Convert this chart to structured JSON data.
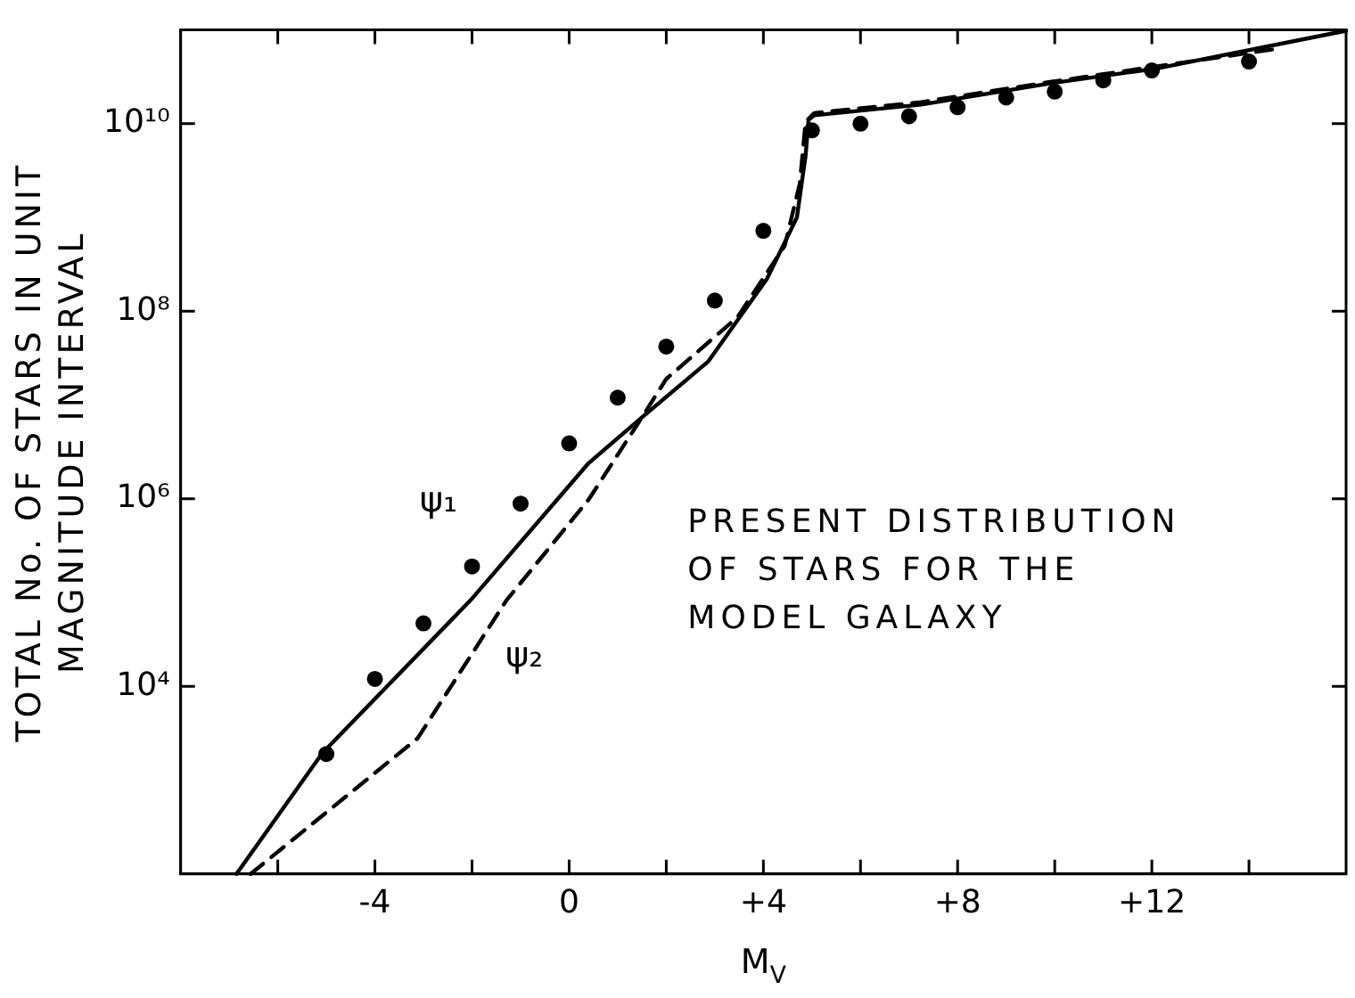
{
  "chart_data": {
    "type": "line",
    "xlabel": "M$_{V}$",
    "ylabel": "TOTAL No. OF STARS IN UNIT\nMAGNITUDE INTERVAL",
    "annotations": [
      "PRESENT DISTRIBUTION\nOF STARS FOR THE\nMODEL GALAXY"
    ],
    "log": "y",
    "grid": false,
    "legend": false,
    "xlim": [
      -8,
      16
    ],
    "xticks": [
      {
        "value": -6,
        "label": null
      },
      -4,
      {
        "value": -2,
        "label": null
      },
      0,
      {
        "value": 2,
        "label": null
      },
      {
        "value": 4,
        "label": "+4"
      },
      {
        "value": 6,
        "label": null
      },
      {
        "value": 8,
        "label": "+8"
      },
      {
        "value": 10,
        "label": null
      },
      {
        "value": 12,
        "label": "+12"
      },
      {
        "value": 14,
        "label": null
      }
    ],
    "ylim": [
      100,
      100000000000
    ],
    "yticks": [
      {
        "value": 10000,
        "label": "10⁴"
      },
      {
        "value": 1000000,
        "label": "10⁶"
      },
      {
        "value": 100000000,
        "label": "10⁸"
      },
      {
        "value": 10000000000,
        "label": "10¹⁰"
      }
    ],
    "series": [
      {
        "name": "ψ₁",
        "color": "#000000",
        "marker": "none",
        "line_style": "solid",
        "x": [
          -6.85,
          -5.08,
          -2.03,
          0.4,
          1.5,
          2.86,
          4.07,
          4.69,
          4.87,
          4.93,
          5.05,
          7.25,
          9.93,
          12.12,
          16
        ],
        "values": [
          100,
          1950,
          83000,
          2400000,
          7400000,
          29000000,
          220000000,
          1000000000,
          4600000000,
          11000000000,
          12300000000,
          16000000000,
          27000000000,
          39000000000,
          98000000000
        ]
      },
      {
        "name": "ψ₂",
        "color": "#000000",
        "marker": "none",
        "line_style": "dashed",
        "x": [
          -6.56,
          -3.12,
          -1.29,
          0.4,
          1.5,
          2.0,
          3.47,
          4.44,
          4.75,
          4.87,
          5.05,
          7.25,
          9.93,
          12.12,
          14.58
        ],
        "values": [
          100,
          2800,
          83000,
          980000,
          7400000,
          19000000,
          87000000,
          500000000,
          2300000000,
          10500000000,
          13000000000,
          17000000000,
          28000000000,
          41000000000,
          63000000000
        ]
      },
      {
        "type": "scatter",
        "color": "#000000",
        "marker": "circle",
        "x": [
          -5,
          -4,
          -3,
          -2,
          -1,
          0,
          1,
          2,
          3,
          4,
          5,
          6,
          7,
          8,
          9,
          10,
          11,
          12,
          14
        ],
        "values": [
          1900,
          12000,
          47000,
          190000,
          890000,
          3900000,
          12000000,
          42000000,
          130000000,
          720000000,
          8500000000,
          10000000000,
          12000000000,
          15000000000,
          19000000000,
          22000000000,
          29000000000,
          37000000000,
          46000000000
        ]
      }
    ]
  }
}
